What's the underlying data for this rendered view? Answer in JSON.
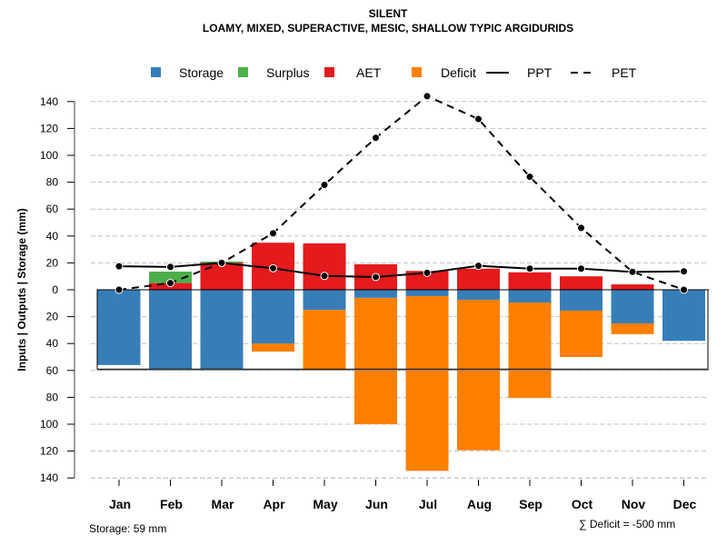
{
  "chart_data": {
    "type": "bar",
    "title": "SILENT",
    "subtitle": "LOAMY, MIXED, SUPERACTIVE, MESIC, SHALLOW TYPIC ARGIDURIDS",
    "xlabel": "",
    "ylabel": "Inputs | Outputs | Storage    (mm)",
    "ylim": [
      -140,
      140
    ],
    "yticks": [
      140,
      120,
      100,
      80,
      60,
      40,
      20,
      0,
      -20,
      -40,
      -60,
      -80,
      -100,
      -120,
      -140
    ],
    "ytick_labels": [
      "140",
      "120",
      "100",
      "80",
      "60",
      "40",
      "20",
      "0",
      "20",
      "40",
      "60",
      "80",
      "100",
      "120",
      "140"
    ],
    "grid": true,
    "legend_position": "top",
    "categories": [
      "Jan",
      "Feb",
      "Mar",
      "Apr",
      "May",
      "Jun",
      "Jul",
      "Aug",
      "Sep",
      "Oct",
      "Nov",
      "Dec"
    ],
    "legend": [
      {
        "name": "Storage",
        "kind": "box",
        "color": "#377EB8"
      },
      {
        "name": "Surplus",
        "kind": "box",
        "color": "#4DAF4A"
      },
      {
        "name": "AET",
        "kind": "box",
        "color": "#E41A1C"
      },
      {
        "name": "Deficit",
        "kind": "box",
        "color": "#FF7F00"
      },
      {
        "name": "PPT",
        "kind": "solid-line",
        "color": "#000000"
      },
      {
        "name": "PET",
        "kind": "dashed-line",
        "color": "#000000"
      }
    ],
    "series": [
      {
        "name": "AET",
        "color": "#E41A1C",
        "values": [
          0,
          5,
          20,
          35,
          34.5,
          19,
          14,
          15.7,
          13,
          10,
          4,
          0
        ]
      },
      {
        "name": "Surplus",
        "color": "#4DAF4A",
        "values": [
          0,
          8.5,
          1,
          0,
          0,
          0,
          0,
          0,
          0,
          0,
          0,
          0
        ]
      },
      {
        "name": "Storage",
        "color": "#377EB8",
        "values": [
          -56,
          -59,
          -59,
          -40,
          -15,
          -6,
          -4.7,
          -7.4,
          -9.5,
          -15.5,
          -25,
          -38
        ]
      },
      {
        "name": "Deficit",
        "color": "#FF7F00",
        "values": [
          0,
          0,
          0,
          -6,
          -45,
          -94,
          -130,
          -112,
          -71,
          -34.5,
          -8,
          0
        ]
      },
      {
        "name": "PPT",
        "color": "#000000",
        "values": [
          17.5,
          17,
          20,
          16,
          10.3,
          9.5,
          12.6,
          17.8,
          15.7,
          15.7,
          13.3,
          13.7
        ]
      },
      {
        "name": "PET",
        "color": "#000000",
        "values": [
          0,
          5,
          20,
          42,
          78,
          113,
          144,
          127,
          84,
          46,
          13.3,
          0
        ]
      }
    ],
    "storage_capacity": 59,
    "annotations": {
      "storage": "Storage: 59 mm",
      "deficit": "∑ Deficit = -500 mm"
    }
  }
}
